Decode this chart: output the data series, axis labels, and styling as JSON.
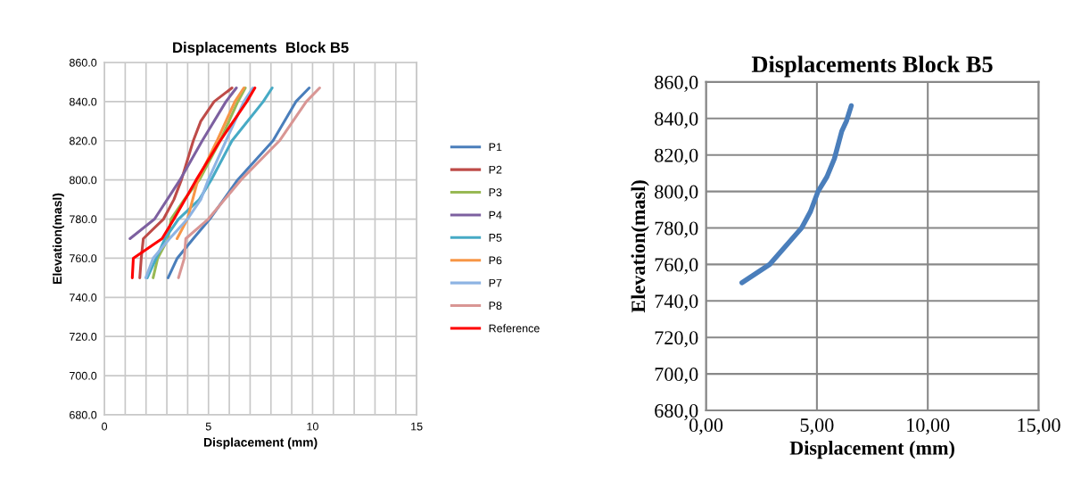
{
  "chart_data": [
    {
      "type": "line",
      "title": "Displacements  Block B5",
      "xlabel": "Displacement (mm)",
      "ylabel": "Elevation(masl)",
      "legend": "right",
      "grid": true,
      "marker": "none",
      "line_style": "solid",
      "xlim": [
        0,
        15
      ],
      "xticks": [
        0,
        {
          "value": 1,
          "label": null
        },
        {
          "value": 2,
          "label": null
        },
        {
          "value": 3,
          "label": null
        },
        {
          "value": 4,
          "label": null
        },
        5,
        {
          "value": 6,
          "label": null
        },
        {
          "value": 7,
          "label": null
        },
        {
          "value": 8,
          "label": null
        },
        {
          "value": 9,
          "label": null
        },
        10,
        {
          "value": 11,
          "label": null
        },
        {
          "value": 12,
          "label": null
        },
        {
          "value": 13,
          "label": null
        },
        {
          "value": 14,
          "label": null
        },
        15
      ],
      "ylim": [
        680,
        860
      ],
      "yticks": [
        {
          "value": 680,
          "label": "680.0"
        },
        {
          "value": 700,
          "label": "700.0"
        },
        {
          "value": 720,
          "label": "720.0"
        },
        {
          "value": 740,
          "label": "740.0"
        },
        {
          "value": 760,
          "label": "760.0"
        },
        {
          "value": 780,
          "label": "780.0"
        },
        {
          "value": 800,
          "label": "800.0"
        },
        {
          "value": 820,
          "label": "820.0"
        },
        {
          "value": 840,
          "label": "840.0"
        },
        {
          "value": 860,
          "label": "860.0"
        }
      ],
      "series": [
        {
          "name": "P1",
          "color": "#4a7ebb",
          "x": [
            3.06,
            3.5,
            4.27,
            5.06,
            6.4,
            8.1,
            9.2,
            9.84
          ],
          "values": [
            750,
            760,
            770,
            780,
            800,
            820,
            840,
            847
          ]
        },
        {
          "name": "P2",
          "color": "#be4b48",
          "x": [
            1.7,
            1.77,
            1.87,
            2.84,
            3.34,
            3.7,
            4.27,
            4.63,
            5.27,
            6.13
          ],
          "values": [
            750,
            760,
            770,
            780,
            790,
            800,
            820,
            830,
            840,
            847
          ]
        },
        {
          "name": "P3",
          "color": "#98b954",
          "x": [
            2.34,
            2.56,
            3.06,
            3.2,
            3.84,
            4.56,
            5.56,
            6.41,
            6.77
          ],
          "values": [
            750,
            760,
            770,
            780,
            790,
            800,
            820,
            840,
            847
          ]
        },
        {
          "name": "P4",
          "color": "#7d60a0",
          "x": [
            1.23,
            2.41,
            3.63,
            4.7,
            5.84,
            6.34
          ],
          "values": [
            770,
            780,
            800,
            820,
            840,
            847
          ]
        },
        {
          "name": "P5",
          "color": "#46aac5",
          "x": [
            2.06,
            2.49,
            2.91,
            3.56,
            4.56,
            5.13,
            6.13,
            7.63,
            8.06
          ],
          "values": [
            750,
            760,
            770,
            780,
            790,
            800,
            820,
            840,
            847
          ]
        },
        {
          "name": "P6",
          "color": "#f79646",
          "x": [
            3.49,
            3.99,
            4.49,
            5.41,
            6.27,
            6.7
          ],
          "values": [
            770,
            780,
            800,
            820,
            840,
            847
          ]
        },
        {
          "name": "P7",
          "color": "#8eb4e3",
          "x": [
            1.99,
            2.34,
            3.13,
            3.99,
            4.63,
            4.99,
            5.84,
            6.7,
            7.13
          ],
          "values": [
            750,
            760,
            770,
            780,
            790,
            800,
            820,
            840,
            847
          ]
        },
        {
          "name": "P8",
          "color": "#d99694",
          "x": [
            3.56,
            3.84,
            3.91,
            4.99,
            6.56,
            8.41,
            9.7,
            10.34
          ],
          "values": [
            750,
            760,
            770,
            780,
            800,
            820,
            840,
            847
          ]
        },
        {
          "name": "Reference",
          "color": "#ff0000",
          "x": [
            1.34,
            1.39,
            2.77,
            3.34,
            4.41,
            5.56,
            6.84,
            7.23
          ],
          "values": [
            750,
            760,
            770,
            780,
            800,
            820,
            840,
            847
          ]
        }
      ]
    },
    {
      "type": "line",
      "title": "Displacements Block B5",
      "xlabel": "Displacement (mm)",
      "ylabel": "Elevation(masl)",
      "legend": false,
      "grid": true,
      "marker": "none",
      "line_style": "solid",
      "xlim": [
        0,
        15
      ],
      "xticks": [
        {
          "value": 0,
          "label": "0,00"
        },
        {
          "value": 5,
          "label": "5,00"
        },
        {
          "value": 10,
          "label": "10,00"
        },
        {
          "value": 15,
          "label": "15,00"
        }
      ],
      "ylim": [
        680,
        860
      ],
      "yticks": [
        {
          "value": 680,
          "label": "680,0"
        },
        {
          "value": 700,
          "label": "700,0"
        },
        {
          "value": 720,
          "label": "720,0"
        },
        {
          "value": 740,
          "label": "740,0"
        },
        {
          "value": 760,
          "label": "760,0"
        },
        {
          "value": 780,
          "label": "780,0"
        },
        {
          "value": 800,
          "label": "800,0"
        },
        {
          "value": 820,
          "label": "820,0"
        },
        {
          "value": 840,
          "label": "840,0"
        },
        {
          "value": 860,
          "label": "860,0"
        }
      ],
      "series": [
        {
          "color": "#4a7ebb",
          "x": [
            1.62,
            2.87,
            4.31,
            4.71,
            5.05,
            5.45,
            5.79,
            6.12,
            6.33,
            6.55
          ],
          "values": [
            750,
            760,
            780,
            789,
            800,
            808,
            818,
            833,
            838.5,
            847
          ]
        }
      ]
    }
  ]
}
